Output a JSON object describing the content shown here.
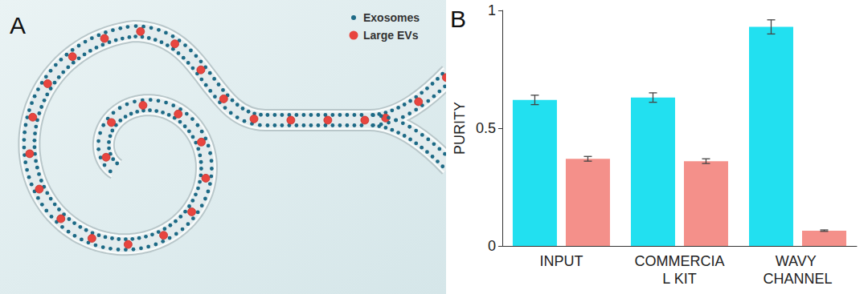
{
  "illustration": {
    "panel_label": "A",
    "legend": [
      {
        "label": "Exosomes",
        "color": "#1d6a86"
      },
      {
        "label": "Large EVs",
        "color": "#e8453f"
      }
    ]
  },
  "chart_data": {
    "type": "bar",
    "panel_label": "B",
    "categories": [
      "INPUT",
      "COMMERCIAL KIT",
      "WAVY CHANNEL"
    ],
    "y_label": "PURITY",
    "series": [
      {
        "color": "#22e0f0",
        "values": [
          0.62,
          0.63,
          0.93
        ],
        "errors": [
          0.02,
          0.02,
          0.03
        ]
      },
      {
        "color": "#f4908a",
        "values": [
          0.37,
          0.36,
          0.065
        ],
        "errors": [
          0.01,
          0.01,
          0.003
        ]
      }
    ],
    "ylim": [
      0,
      1
    ],
    "yticks": [
      0,
      0.5,
      1
    ],
    "grid": false
  }
}
